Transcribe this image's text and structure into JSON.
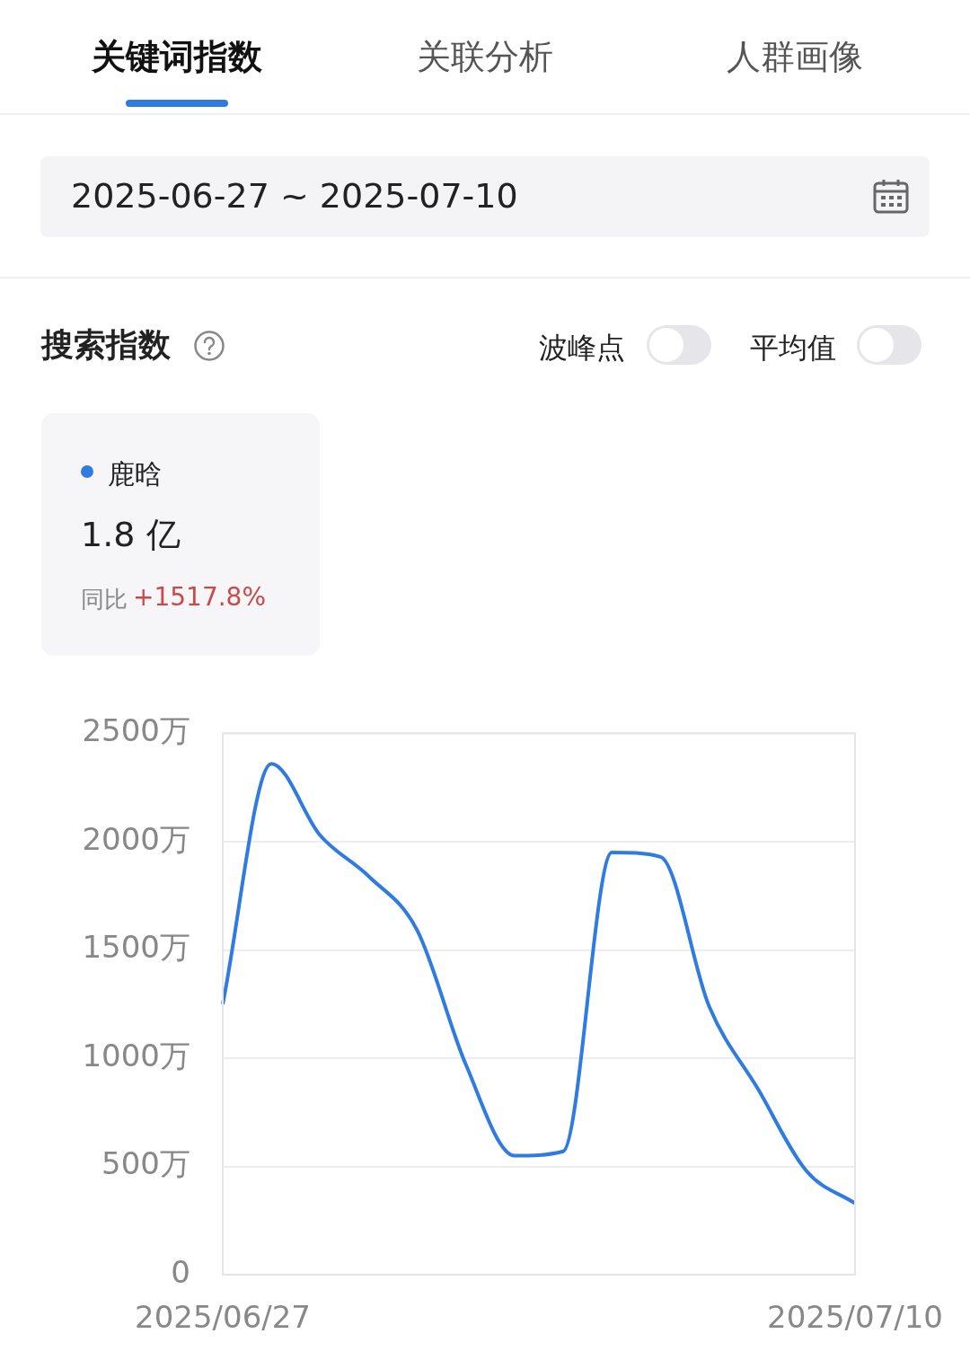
{
  "chart_data": {
    "type": "line",
    "title": "搜索指数",
    "categories": [
      "2025/06/27",
      null,
      null,
      null,
      null,
      null,
      null,
      null,
      null,
      null,
      null,
      null,
      null,
      "2025/07/10"
    ],
    "series": [
      {
        "name": "鹿晗",
        "color": "#2f7be0",
        "values": [
          1250,
          2360,
          2030,
          1840,
          1590,
          970,
          550,
          570,
          1950,
          1930,
          1240,
          860,
          480,
          330
        ]
      }
    ],
    "ylim": [
      0,
      2500
    ],
    "yticks": [
      0,
      {
        "value": 500,
        "label": "500万"
      },
      {
        "value": 1000,
        "label": "1000万"
      },
      {
        "value": 1500,
        "label": "1500万"
      },
      {
        "value": 2000,
        "label": "2000万"
      },
      {
        "value": 2500,
        "label": "2500万"
      }
    ],
    "grid": "y",
    "legend": "top left",
    "marker": "none",
    "line_style": "solid",
    "annotations": [
      "关键词指数",
      "关联分析",
      "人群画像",
      "2025-06-27  ~  2025-07-10",
      "波峰点",
      "平均值",
      "1.8 亿",
      "同比",
      "+1517.8%"
    ]
  }
}
